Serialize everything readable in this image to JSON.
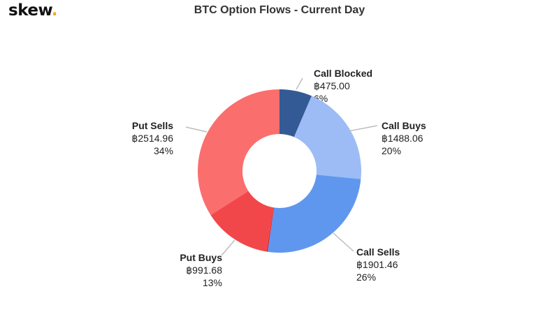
{
  "brand": {
    "name": "skew",
    "dot": ".",
    "dot_color": "#f5a623"
  },
  "chart_data": {
    "type": "pie",
    "title": "BTC Option Flows - Current Day",
    "donut": true,
    "slices": [
      {
        "name": "Call Blocked",
        "value_label": "฿475.00",
        "value": 475.0,
        "percent_label": "6%",
        "color": "#345a95"
      },
      {
        "name": "Call Buys",
        "value_label": "฿1488.06",
        "value": 1488.06,
        "percent_label": "20%",
        "color": "#9dbcf5"
      },
      {
        "name": "Call Sells",
        "value_label": "฿1901.46",
        "value": 1901.46,
        "percent_label": "26%",
        "color": "#6097ee"
      },
      {
        "name": "",
        "value_label": "",
        "value": 12,
        "percent_label": "",
        "color": "#c8141a"
      },
      {
        "name": "Put Buys",
        "value_label": "฿991.68",
        "value": 991.68,
        "percent_label": "13%",
        "color": "#f2474a"
      },
      {
        "name": "Put Sells",
        "value_label": "฿2514.96",
        "value": 2514.96,
        "percent_label": "34%",
        "color": "#fb6e6e"
      }
    ]
  }
}
